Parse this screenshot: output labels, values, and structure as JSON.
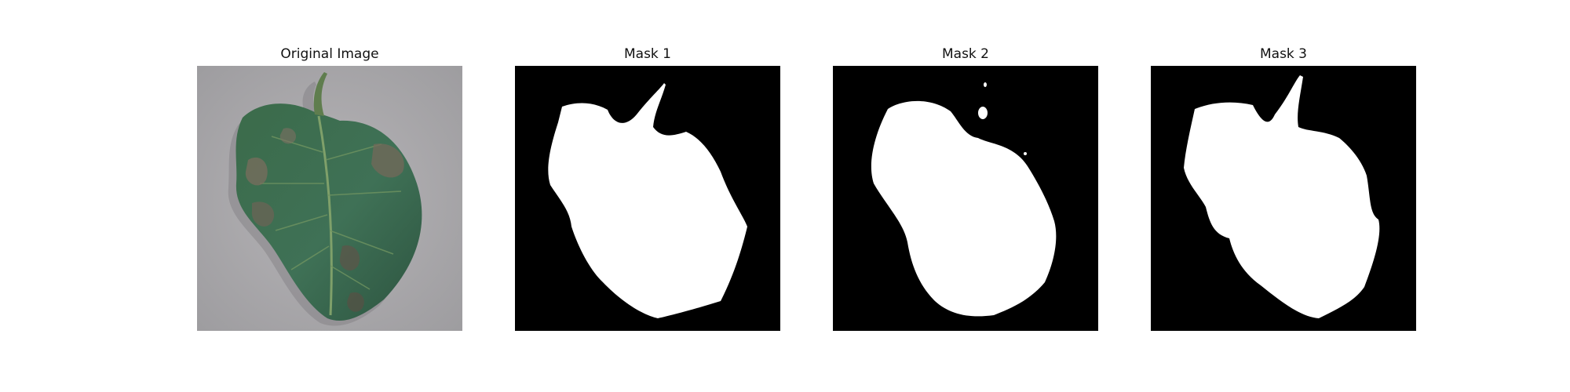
{
  "figure": {
    "panels": [
      {
        "title": "Original Image",
        "kind": "photo",
        "subject": "leaf-photo"
      },
      {
        "title": "Mask 1",
        "kind": "mask",
        "subject": "leaf-mask"
      },
      {
        "title": "Mask 2",
        "kind": "mask",
        "subject": "leaf-mask"
      },
      {
        "title": "Mask 3",
        "kind": "mask",
        "subject": "leaf-mask"
      }
    ],
    "colors": {
      "background": "#ffffff",
      "mask_foreground": "#ffffff",
      "mask_background": "#000000",
      "leaf": "#3f6a4f",
      "photo_background": "#a8a7a9"
    }
  }
}
